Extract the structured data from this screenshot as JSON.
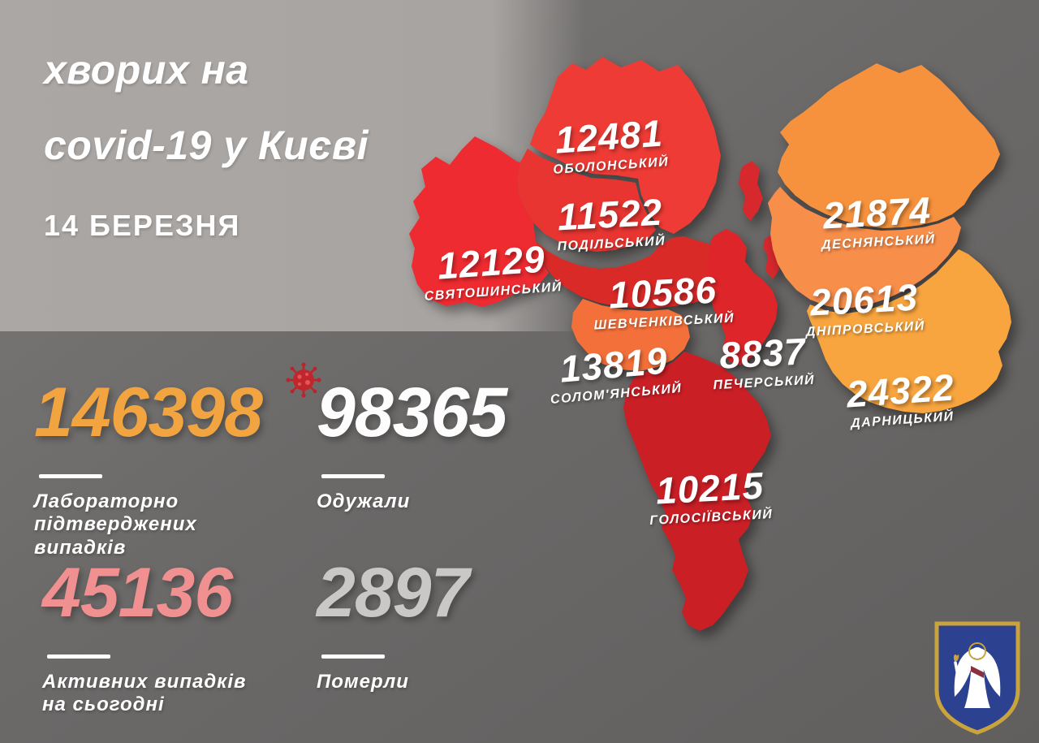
{
  "title": {
    "line1": "хворих на",
    "line2": "covid-19 у Києві",
    "date": "14 БЕРЕЗНЯ"
  },
  "map": {
    "districts": [
      {
        "id": "obolonskyi",
        "value": "12481",
        "name": "ОБОЛОНСЬКИЙ",
        "color": "#ee3b35"
      },
      {
        "id": "podilskyi",
        "value": "11522",
        "name": "ПОДІЛЬСЬКИЙ",
        "color": "#e83531"
      },
      {
        "id": "sviatoshynskyi",
        "value": "12129",
        "name": "СВЯТОШИНСЬКИЙ",
        "color": "#ed2b30"
      },
      {
        "id": "shevchenkivskyi",
        "value": "10586",
        "name": "ШЕВЧЕНКІВСЬКИЙ",
        "color": "#d92a28"
      },
      {
        "id": "solomianskyi",
        "value": "13819",
        "name": "СОЛОМ'ЯНСЬКИЙ",
        "color": "#f4703a"
      },
      {
        "id": "pecherskyi",
        "value": "8837",
        "name": "ПЕЧЕРСЬКИЙ",
        "color": "#de2529"
      },
      {
        "id": "holosiivskyi",
        "value": "10215",
        "name": "ГОЛОСІЇВСЬКИЙ",
        "color": "#cb1f26"
      },
      {
        "id": "desnianskyi",
        "value": "21874",
        "name": "ДЕСНЯНСЬКИЙ",
        "color": "#f6923d"
      },
      {
        "id": "dniprovskyi",
        "value": "20613",
        "name": "ДНІПРОВСЬКИЙ",
        "color": "#f78e4a"
      },
      {
        "id": "darnytskyi",
        "value": "24322",
        "name": "ДАРНИЦЬКИЙ",
        "color": "#f8a53f"
      }
    ],
    "island_color": "#d7282d"
  },
  "stats": [
    {
      "id": "confirmed",
      "value": "146398",
      "label": "Лабораторно\nпідтверджених\nвипадків",
      "color": "#f2a440"
    },
    {
      "id": "recovered",
      "value": "98365",
      "label": "Одужали",
      "color": "#fdfdfd"
    },
    {
      "id": "active",
      "value": "45136",
      "label": "Активних випадків\nна сьогодні",
      "color": "#f09090"
    },
    {
      "id": "deaths",
      "value": "2897",
      "label": "Померли",
      "color": "#c9c8c7"
    }
  ],
  "icons": {
    "virus": "virus-icon",
    "emblem": "kyiv-coat-of-arms"
  },
  "colors": {
    "bg_dark": "#6c6a69",
    "bg_light": "#a8a4a2",
    "text": "#ffffff",
    "emblem_blue": "#2c4190",
    "emblem_gold": "#c9a33c"
  }
}
